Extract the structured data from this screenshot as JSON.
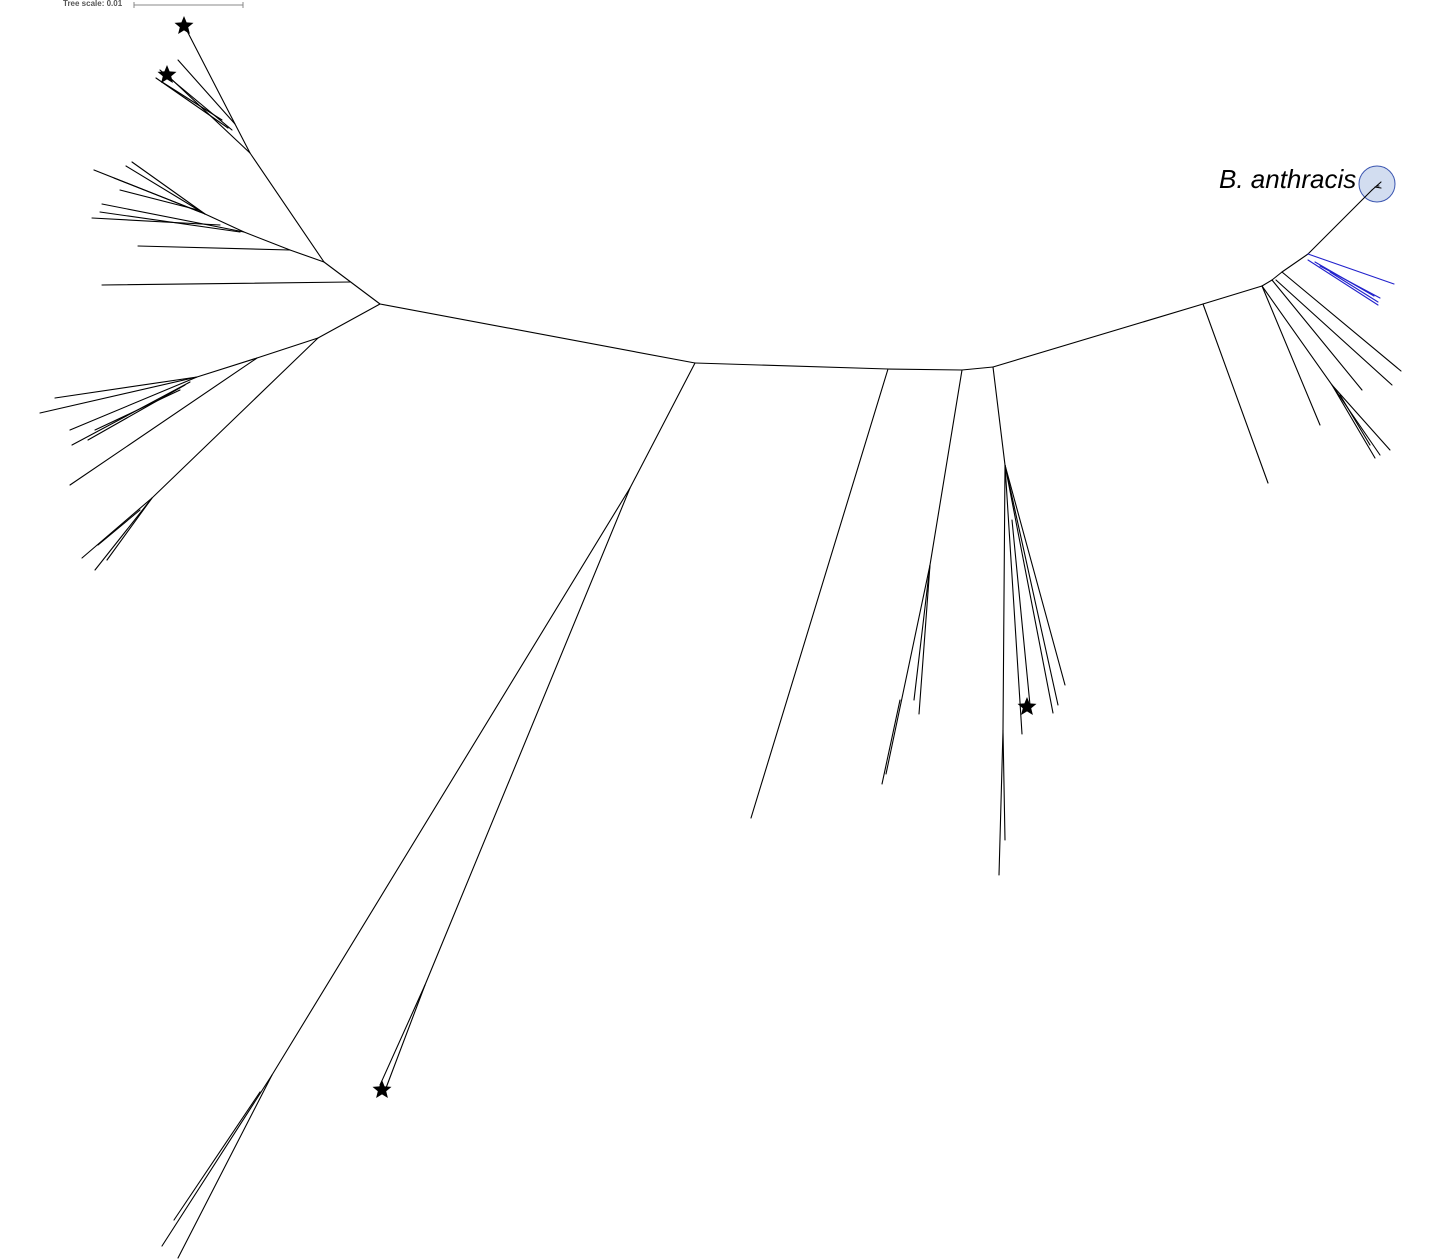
{
  "scale": {
    "label": "Tree scale: 0.01"
  },
  "clade": {
    "label": "B. anthracis",
    "highlight_fill": "#d2ddf0",
    "highlight_stroke": "#3a55b0"
  },
  "colors": {
    "branch": "#000000",
    "highlighted_branch": "#2222cc",
    "marker": "#000000"
  },
  "marker_shape": "star"
}
